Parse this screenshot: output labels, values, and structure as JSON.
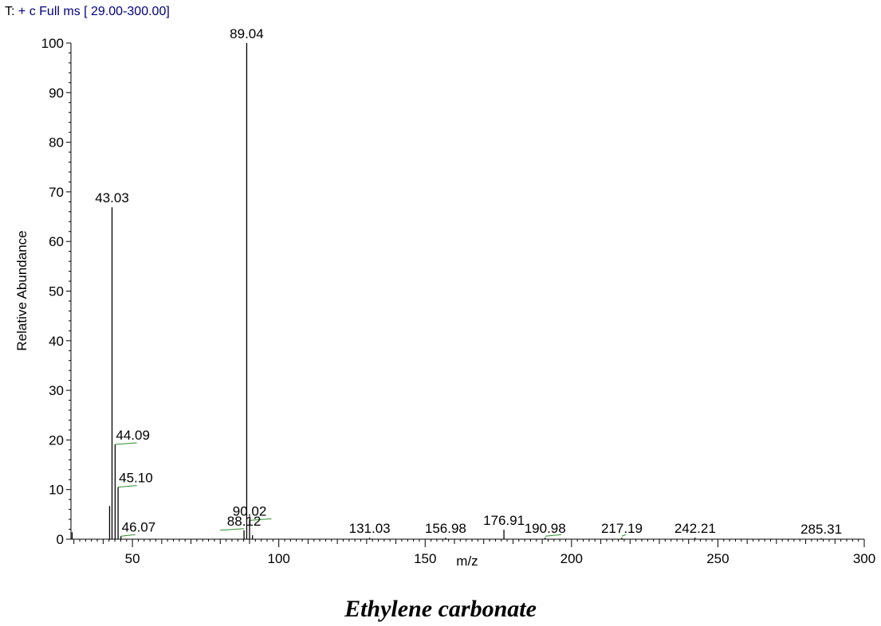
{
  "header": {
    "prefix": "T:",
    "scan_filter": "+ c Full ms [ 29.00-300.00]",
    "prefix_color": "#000000",
    "filter_color": "#00007f"
  },
  "compound_name": "Ethylene carbonate",
  "colors": {
    "axis": "#000000",
    "peak": "#000000",
    "isotope_marker": "#2e8b2e"
  },
  "chart_data": {
    "type": "bar",
    "title": "",
    "xlabel": "m/z",
    "ylabel": "Relative Abundance",
    "xlim": [
      29,
      300
    ],
    "ylim": [
      0,
      100
    ],
    "x_ticks": [
      50,
      100,
      150,
      200,
      250,
      300
    ],
    "y_ticks": [
      0,
      10,
      20,
      30,
      40,
      50,
      60,
      70,
      80,
      90,
      100
    ],
    "grid": false,
    "legend": "none",
    "peaks": [
      {
        "mz": 29.4,
        "intensity": 1.4,
        "label": ""
      },
      {
        "mz": 42.2,
        "intensity": 6.7,
        "label": ""
      },
      {
        "mz": 43.03,
        "intensity": 66.9,
        "label": "43.03"
      },
      {
        "mz": 44.09,
        "intensity": 19.1,
        "label": "44.09"
      },
      {
        "mz": 45.1,
        "intensity": 10.5,
        "label": "45.10"
      },
      {
        "mz": 46.07,
        "intensity": 0.6,
        "label": "46.07"
      },
      {
        "mz": 88.12,
        "intensity": 1.8,
        "label": "88.12"
      },
      {
        "mz": 89.04,
        "intensity": 100.0,
        "label": "89.04"
      },
      {
        "mz": 90.02,
        "intensity": 3.8,
        "label": "90.02"
      },
      {
        "mz": 91.0,
        "intensity": 0.8,
        "label": ""
      },
      {
        "mz": 131.03,
        "intensity": 0.3,
        "label": "131.03"
      },
      {
        "mz": 156.98,
        "intensity": 0.3,
        "label": "156.98"
      },
      {
        "mz": 176.91,
        "intensity": 1.9,
        "label": "176.91"
      },
      {
        "mz": 190.98,
        "intensity": 0.3,
        "label": "190.98"
      },
      {
        "mz": 217.19,
        "intensity": 0.3,
        "label": "217.19"
      },
      {
        "mz": 242.21,
        "intensity": 0.3,
        "label": "242.21"
      },
      {
        "mz": 285.31,
        "intensity": 0.2,
        "label": "285.31"
      }
    ]
  }
}
